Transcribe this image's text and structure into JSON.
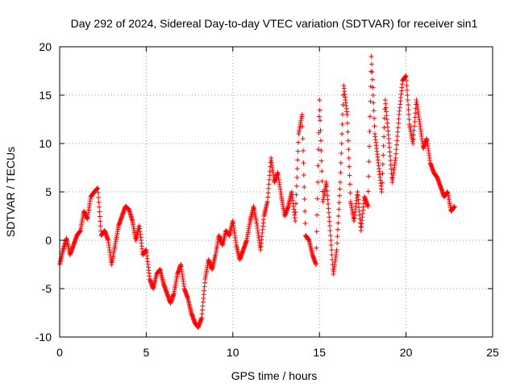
{
  "chart_data": {
    "type": "scatter",
    "title": "Day 292 of 2024, Sidereal Day-to-day VTEC variation (SDTVAR) for receiver sin1",
    "xlabel": "GPS time / hours",
    "ylabel": "SDTVAR / TECUs",
    "xlim": [
      0,
      25
    ],
    "ylim": [
      -10,
      20
    ],
    "xticks": [
      "0",
      "5",
      "10",
      "15",
      "20",
      "25"
    ],
    "yticks": [
      "-10",
      "-5",
      "0",
      "5",
      "10",
      "15",
      "20"
    ],
    "grid": true,
    "marker": "plus",
    "color": "#ff0000",
    "series": [
      {
        "name": "sin1",
        "x": [
          0.0,
          0.2,
          0.4,
          0.6,
          0.8,
          1.0,
          1.2,
          1.4,
          1.6,
          1.8,
          2.0,
          2.2,
          2.4,
          2.6,
          2.8,
          3.0,
          3.2,
          3.4,
          3.6,
          3.8,
          4.0,
          4.2,
          4.4,
          4.6,
          4.8,
          5.0,
          5.2,
          5.4,
          5.6,
          5.8,
          6.0,
          6.2,
          6.4,
          6.6,
          6.8,
          7.0,
          7.2,
          7.4,
          7.6,
          7.8,
          8.0,
          8.2,
          8.4,
          8.6,
          8.8,
          9.0,
          9.2,
          9.4,
          9.6,
          9.8,
          10.0,
          10.2,
          10.4,
          10.6,
          10.8,
          11.0,
          11.2,
          11.4,
          11.6,
          11.8,
          12.0,
          12.2,
          12.4,
          12.6,
          12.8,
          13.0,
          13.2,
          13.4,
          13.6,
          13.8,
          14.0,
          14.2,
          14.4,
          14.6,
          14.8,
          15.0,
          15.2,
          15.4,
          15.6,
          15.8,
          16.0,
          16.2,
          16.4,
          16.6,
          16.8,
          17.0,
          17.2,
          17.4,
          17.6,
          17.8,
          18.0,
          18.2,
          18.4,
          18.6,
          18.8,
          19.0,
          19.2,
          19.4,
          19.6,
          19.8,
          20.0,
          20.2,
          20.4,
          20.6,
          20.8,
          21.0,
          21.2,
          21.4,
          21.6,
          21.8,
          22.0,
          22.2,
          22.4,
          22.6,
          22.8
        ],
        "y": [
          -2.5,
          -1.0,
          0.2,
          -1.5,
          -0.5,
          0.5,
          1.0,
          3.0,
          2.2,
          4.5,
          5.0,
          5.4,
          0.5,
          1.0,
          0.0,
          -2.5,
          -0.5,
          1.5,
          2.5,
          3.5,
          3.2,
          2.0,
          0.0,
          1.5,
          -1.5,
          -1.0,
          -4.0,
          -5.0,
          -3.5,
          -3.0,
          -4.5,
          -5.5,
          -6.5,
          -5.5,
          -3.5,
          -2.5,
          -5.0,
          -6.0,
          -7.5,
          -8.5,
          -9.0,
          -8.0,
          -4.0,
          -2.0,
          -3.0,
          -1.5,
          0.5,
          -0.5,
          1.0,
          0.5,
          2.0,
          -0.5,
          -2.0,
          -1.0,
          0.0,
          2.0,
          3.5,
          1.5,
          -1.0,
          2.5,
          4.0,
          8.5,
          6.0,
          7.0,
          4.5,
          2.5,
          3.5,
          5.0,
          2.0,
          11.0,
          13.0,
          0.5,
          0.0,
          -1.5,
          -2.5,
          14.5,
          4.0,
          6.0,
          1.5,
          -3.5,
          -1.0,
          6.0,
          16.0,
          13.0,
          4.0,
          2.0,
          5.0,
          1.0,
          4.5,
          3.5,
          19.0,
          11.0,
          8.0,
          5.0,
          14.5,
          10.5,
          6.0,
          8.5,
          13.0,
          16.5,
          17.0,
          12.0,
          10.0,
          14.5,
          12.0,
          9.5,
          10.5,
          8.0,
          7.0,
          6.5,
          5.5,
          4.5,
          5.0,
          3.0,
          3.5
        ]
      }
    ]
  }
}
